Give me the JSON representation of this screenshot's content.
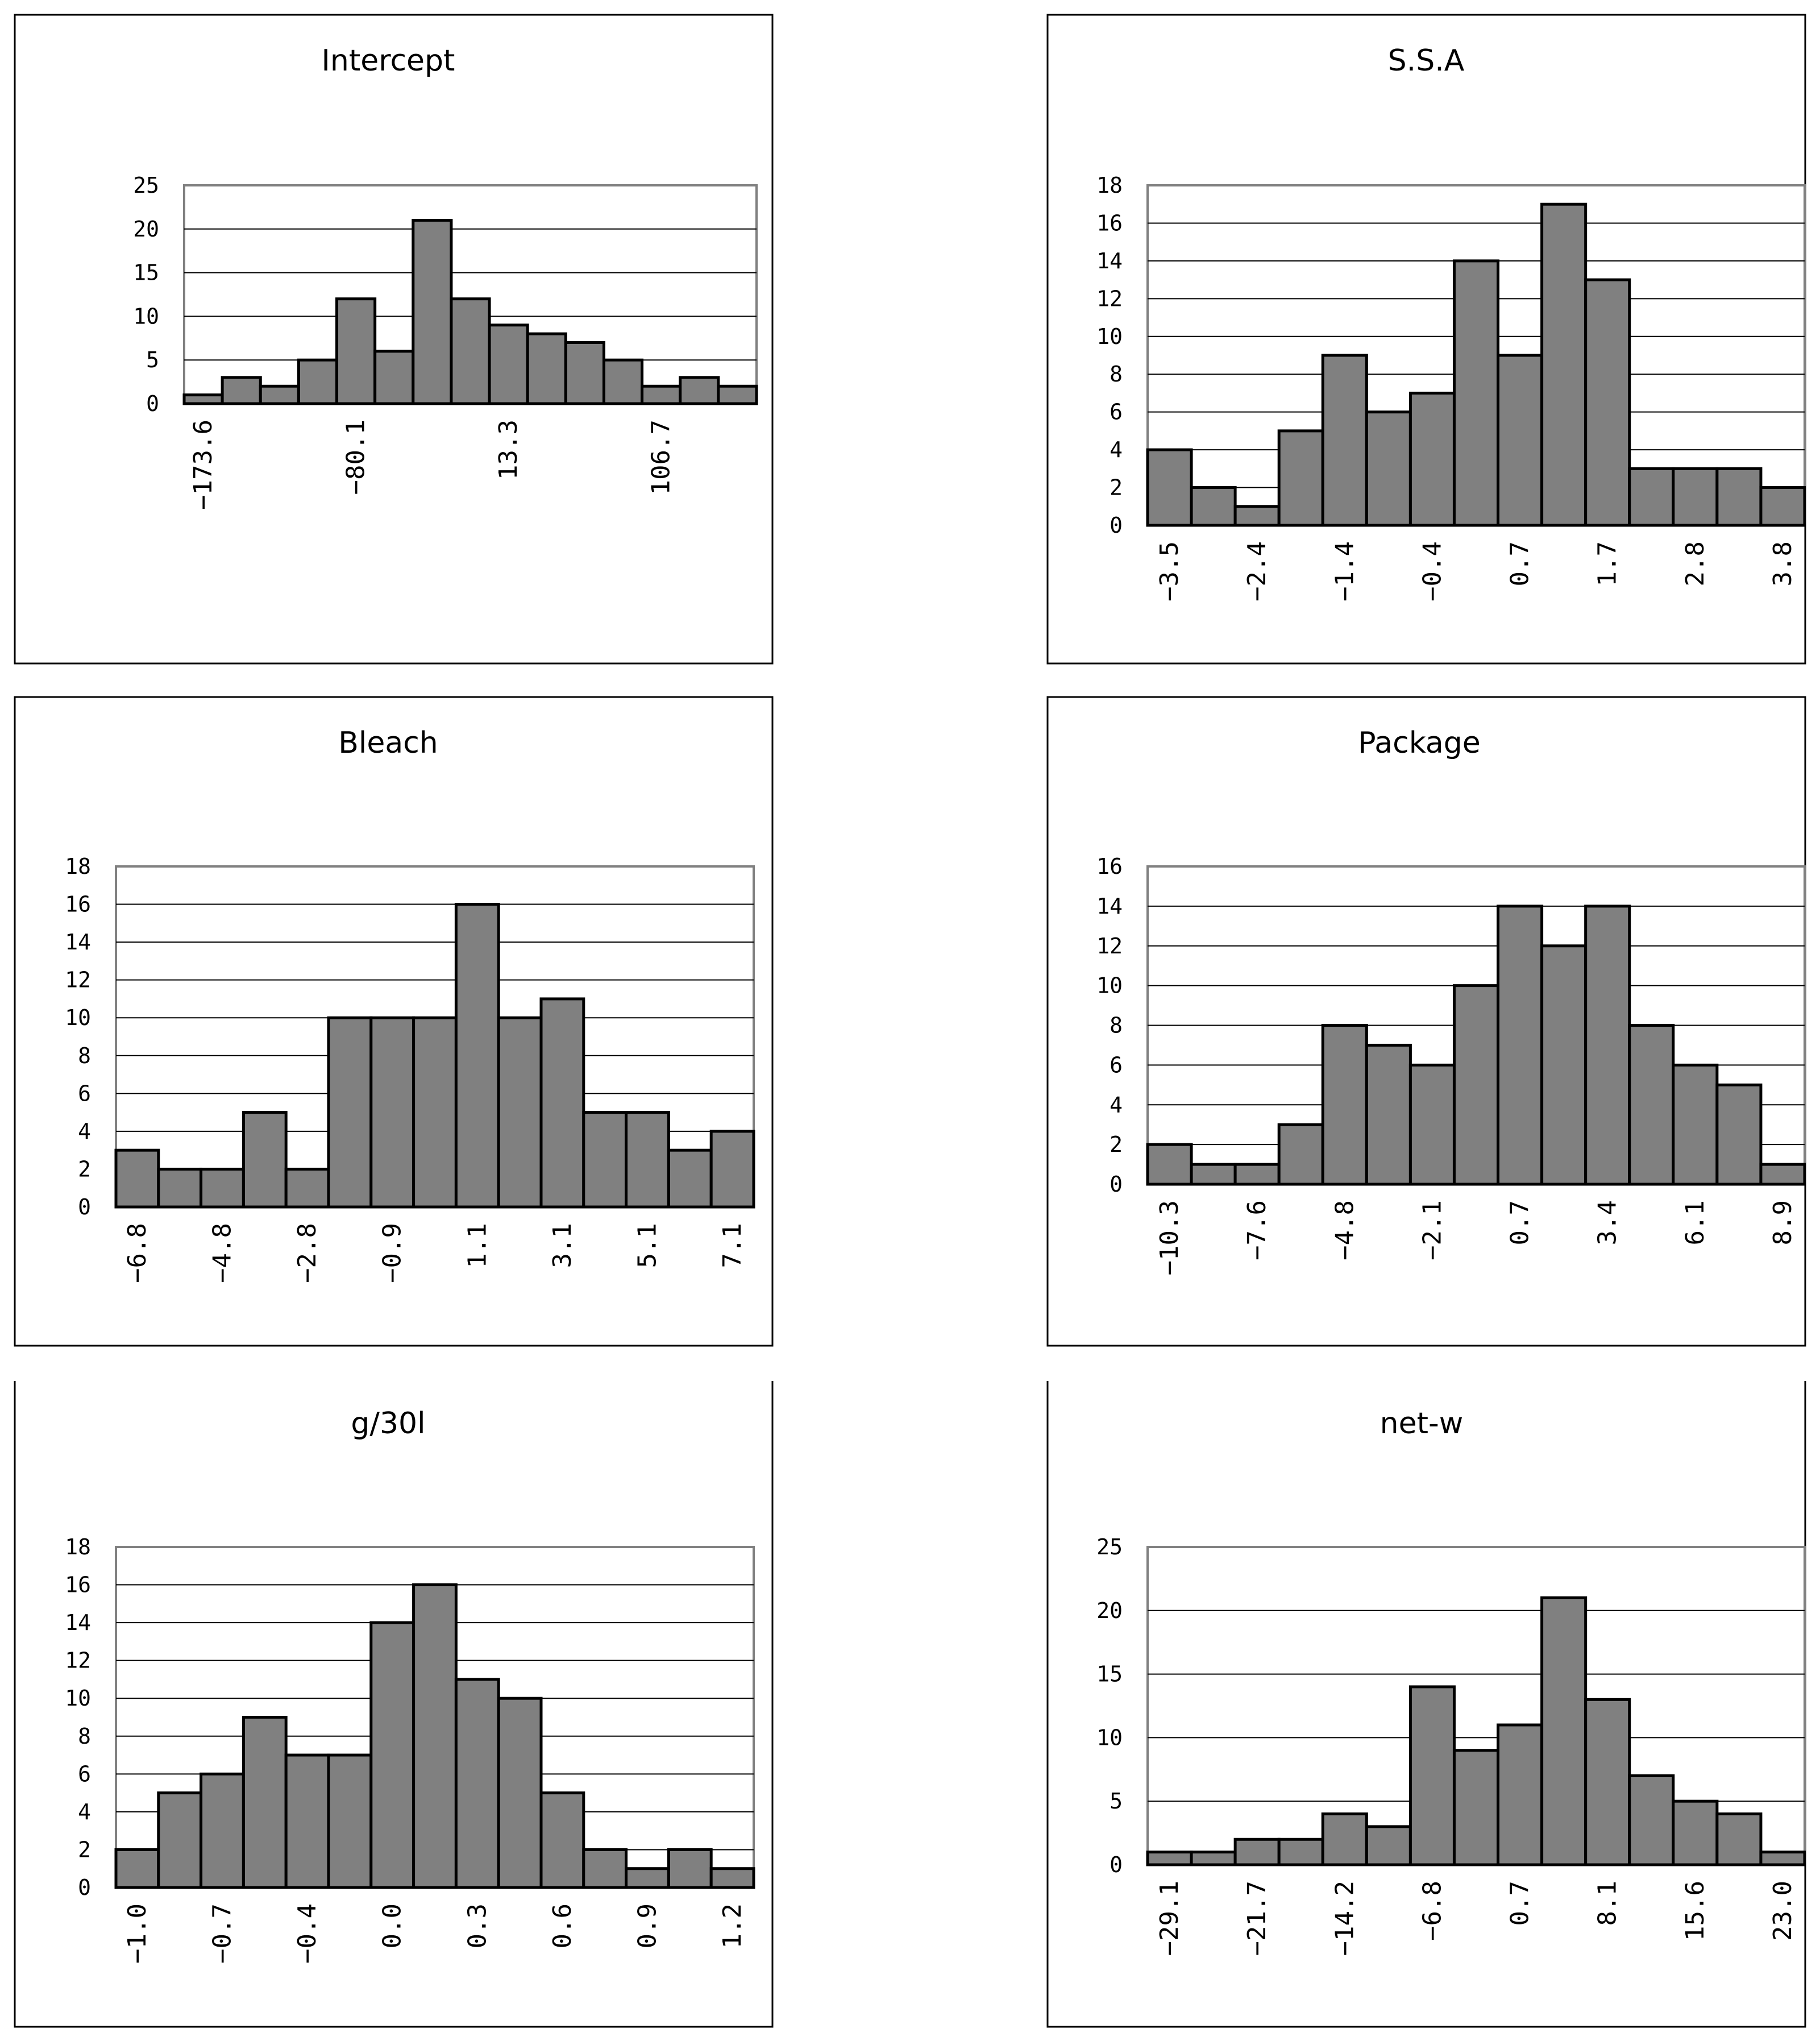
{
  "figure": {
    "background": "#ffffff",
    "bar_color": "#808080",
    "edge_color": "#000000"
  },
  "chart_data": [
    {
      "type": "bar",
      "title": "Intercept",
      "xlabel": "",
      "ylabel": "",
      "ylim": [
        0,
        25
      ],
      "yticks": [
        "0",
        "5",
        "10",
        "15",
        "20",
        "25"
      ],
      "xtick_labels": [
        "-173.6",
        "-80.1",
        "13.3",
        "106.7"
      ],
      "xtick_every": 4,
      "values": [
        1,
        3,
        2,
        5,
        12,
        6,
        21,
        12,
        9,
        8,
        7,
        5,
        2,
        3,
        2
      ]
    },
    {
      "type": "bar",
      "title": "S.S.A",
      "xlabel": "",
      "ylabel": "",
      "ylim": [
        0,
        18
      ],
      "yticks": [
        "0",
        "2",
        "4",
        "6",
        "8",
        "10",
        "12",
        "14",
        "16",
        "18"
      ],
      "xtick_labels": [
        "-3.5",
        "-2.4",
        "-1.4",
        "-0.4",
        "0.7",
        "1.7",
        "2.8",
        "3.8"
      ],
      "xtick_every": 2,
      "values": [
        4,
        2,
        1,
        5,
        9,
        6,
        7,
        14,
        9,
        17,
        13,
        3,
        3,
        3,
        2
      ]
    },
    {
      "type": "bar",
      "title": "Bleach",
      "xlabel": "",
      "ylabel": "",
      "ylim": [
        0,
        18
      ],
      "yticks": [
        "0",
        "2",
        "4",
        "6",
        "8",
        "10",
        "12",
        "14",
        "16",
        "18"
      ],
      "xtick_labels": [
        "-6.8",
        "-4.8",
        "-2.8",
        "-0.9",
        "1.1",
        "3.1",
        "5.1",
        "7.1"
      ],
      "xtick_every": 2,
      "values": [
        3,
        2,
        2,
        5,
        2,
        10,
        10,
        10,
        16,
        10,
        11,
        5,
        5,
        3,
        4
      ]
    },
    {
      "type": "bar",
      "title": "Package",
      "xlabel": "",
      "ylabel": "",
      "ylim": [
        0,
        16
      ],
      "yticks": [
        "0",
        "2",
        "4",
        "6",
        "8",
        "10",
        "12",
        "14",
        "16"
      ],
      "xtick_labels": [
        "-10.3",
        "-7.6",
        "-4.8",
        "-2.1",
        "0.7",
        "3.4",
        "6.1",
        "8.9"
      ],
      "xtick_every": 2,
      "values": [
        2,
        1,
        1,
        3,
        8,
        7,
        6,
        10,
        14,
        12,
        14,
        8,
        6,
        5,
        1
      ]
    },
    {
      "type": "bar",
      "title": "g/30l",
      "xlabel": "",
      "ylabel": "",
      "ylim": [
        0,
        18
      ],
      "yticks": [
        "0",
        "2",
        "4",
        "6",
        "8",
        "10",
        "12",
        "14",
        "16",
        "18"
      ],
      "xtick_labels": [
        "-1.0",
        "-0.7",
        "-0.4",
        "0.0",
        "0.3",
        "0.6",
        "0.9",
        "1.2"
      ],
      "xtick_every": 2,
      "values": [
        2,
        5,
        6,
        9,
        7,
        7,
        14,
        16,
        11,
        10,
        5,
        2,
        1,
        2,
        1
      ]
    },
    {
      "type": "bar",
      "title": "net-w",
      "xlabel": "",
      "ylabel": "",
      "ylim": [
        0,
        25
      ],
      "yticks": [
        "0",
        "5",
        "10",
        "15",
        "20",
        "25"
      ],
      "xtick_labels": [
        "-29.1",
        "-21.7",
        "-14.2",
        "-6.8",
        "0.7",
        "8.1",
        "15.6",
        "23.0"
      ],
      "xtick_every": 2,
      "values": [
        1,
        1,
        2,
        2,
        4,
        3,
        14,
        9,
        11,
        21,
        13,
        7,
        5,
        4,
        1
      ]
    }
  ]
}
